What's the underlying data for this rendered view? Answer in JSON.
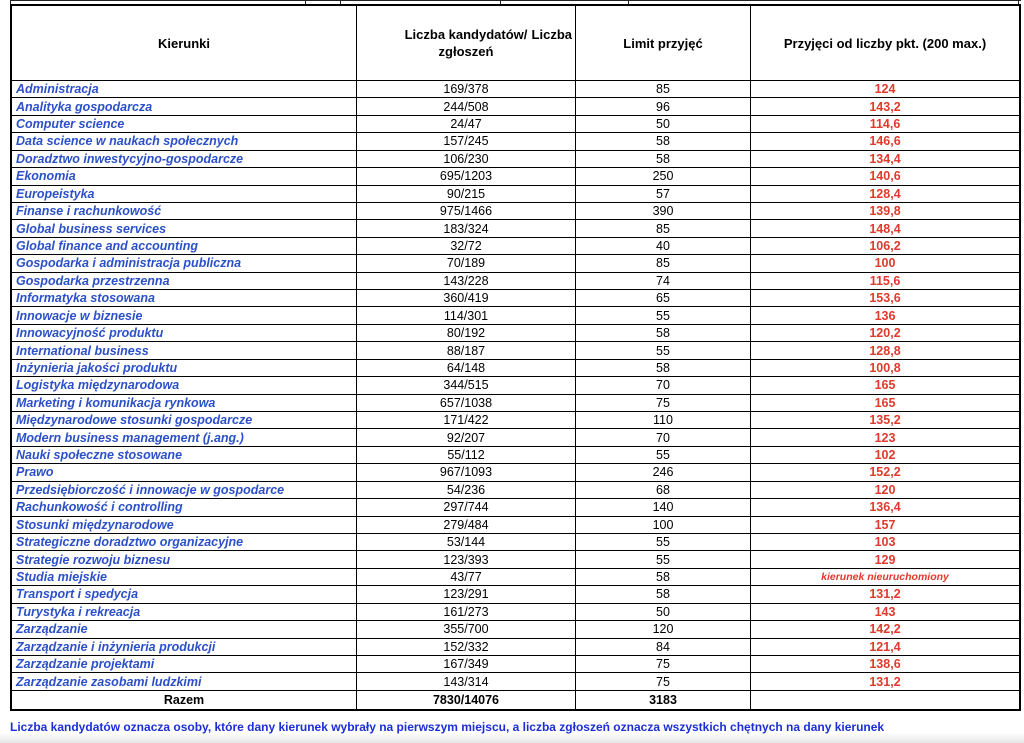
{
  "colors": {
    "course_name_blue": "#2b50c8",
    "value_red": "#e03a2c",
    "footer_blue": "#1b2ed8",
    "border_black": "#000000"
  },
  "table": {
    "headers": {
      "col1": "Kierunki",
      "col2_line1": "Liczba kandydatów/",
      "col2_line2": "zgłoszeń",
      "col2_overflow": "Liczba",
      "col3": "Limit przyjęć",
      "col4": "Przyjęci od liczby pkt. (200 max.)"
    },
    "rows": [
      {
        "name": "Administracja",
        "candidates": "169/378",
        "limit": "85",
        "points": "124"
      },
      {
        "name": "Analityka gospodarcza",
        "candidates": "244/508",
        "limit": "96",
        "points": "143,2"
      },
      {
        "name": "Computer science",
        "candidates": "24/47",
        "limit": "50",
        "points": "114,6"
      },
      {
        "name": "Data science w naukach społecznych",
        "candidates": "157/245",
        "limit": "58",
        "points": "146,6"
      },
      {
        "name": "Doradztwo inwestycyjno-gospodarcze",
        "candidates": "106/230",
        "limit": "58",
        "points": "134,4"
      },
      {
        "name": "Ekonomia",
        "candidates": "695/1203",
        "limit": "250",
        "points": "140,6"
      },
      {
        "name": "Europeistyka",
        "candidates": "90/215",
        "limit": "57",
        "points": "128,4"
      },
      {
        "name": "Finanse i rachunkowość",
        "candidates": "975/1466",
        "limit": "390",
        "points": "139,8"
      },
      {
        "name": "Global business services",
        "candidates": "183/324",
        "limit": "85",
        "points": "148,4"
      },
      {
        "name": "Global finance and accounting",
        "candidates": "32/72",
        "limit": "40",
        "points": "106,2"
      },
      {
        "name": "Gospodarka i administracja publiczna",
        "candidates": "70/189",
        "limit": "85",
        "points": "100"
      },
      {
        "name": "Gospodarka przestrzenna",
        "candidates": "143/228",
        "limit": "74",
        "points": "115,6"
      },
      {
        "name": "Informatyka stosowana",
        "candidates": "360/419",
        "limit": "65",
        "points": "153,6"
      },
      {
        "name": "Innowacje w biznesie",
        "candidates": "114/301",
        "limit": "55",
        "points": "136"
      },
      {
        "name": "Innowacyjność produktu",
        "candidates": "80/192",
        "limit": "58",
        "points": "120,2"
      },
      {
        "name": "International business",
        "candidates": "88/187",
        "limit": "55",
        "points": "128,8"
      },
      {
        "name": "Inżynieria jakości produktu",
        "candidates": "64/148",
        "limit": "58",
        "points": "100,8"
      },
      {
        "name": "Logistyka międzynarodowa",
        "candidates": "344/515",
        "limit": "70",
        "points": "165"
      },
      {
        "name": "Marketing i komunikacja rynkowa",
        "candidates": "657/1038",
        "limit": "75",
        "points": "165"
      },
      {
        "name": "Międzynarodowe stosunki gospodarcze",
        "candidates": "171/422",
        "limit": "110",
        "points": "135,2"
      },
      {
        "name": "Modern business management (j.ang.)",
        "candidates": "92/207",
        "limit": "70",
        "points": "123"
      },
      {
        "name": "Nauki społeczne stosowane",
        "candidates": "55/112",
        "limit": "55",
        "points": "102"
      },
      {
        "name": "Prawo",
        "candidates": "967/1093",
        "limit": "246",
        "points": "152,2"
      },
      {
        "name": "Przedsiębiorczość i innowacje w gospodarce",
        "candidates": "54/236",
        "limit": "68",
        "points": "120"
      },
      {
        "name": "Rachunkowość i controlling",
        "candidates": "297/744",
        "limit": "140",
        "points": "136,4"
      },
      {
        "name": "Stosunki międzynarodowe",
        "candidates": "279/484",
        "limit": "100",
        "points": "157"
      },
      {
        "name": "Strategiczne doradztwo organizacyjne",
        "candidates": "53/144",
        "limit": "55",
        "points": "103"
      },
      {
        "name": "Strategie rozwoju biznesu",
        "candidates": "123/393",
        "limit": "55",
        "points": "129"
      },
      {
        "name": "Studia miejskie",
        "candidates": "43/77",
        "limit": "58",
        "points": "kierunek nieuruchomiony",
        "note": true
      },
      {
        "name": "Transport i spedycja",
        "candidates": "123/291",
        "limit": "58",
        "points": "131,2"
      },
      {
        "name": "Turystyka i rekreacja",
        "candidates": "161/273",
        "limit": "50",
        "points": "143"
      },
      {
        "name": "Zarządzanie",
        "candidates": "355/700",
        "limit": "120",
        "points": "142,2"
      },
      {
        "name": "Zarządzanie i inżynieria produkcji",
        "candidates": "152/332",
        "limit": "84",
        "points": "121,4"
      },
      {
        "name": "Zarządzanie projektami",
        "candidates": "167/349",
        "limit": "75",
        "points": "138,6"
      },
      {
        "name": "Zarządzanie zasobami ludzkimi",
        "candidates": "143/314",
        "limit": "75",
        "points": "131,2"
      }
    ],
    "summary": {
      "label": "Razem",
      "candidates": "7830/14076",
      "limit": "3183",
      "points": ""
    }
  },
  "footer": {
    "text": "Liczba kandydatów oznacza osoby, które dany kierunek wybrały na pierwszym miejscu, a liczba zgłoszeń oznacza wszystkich chętnych na dany kierunek"
  }
}
